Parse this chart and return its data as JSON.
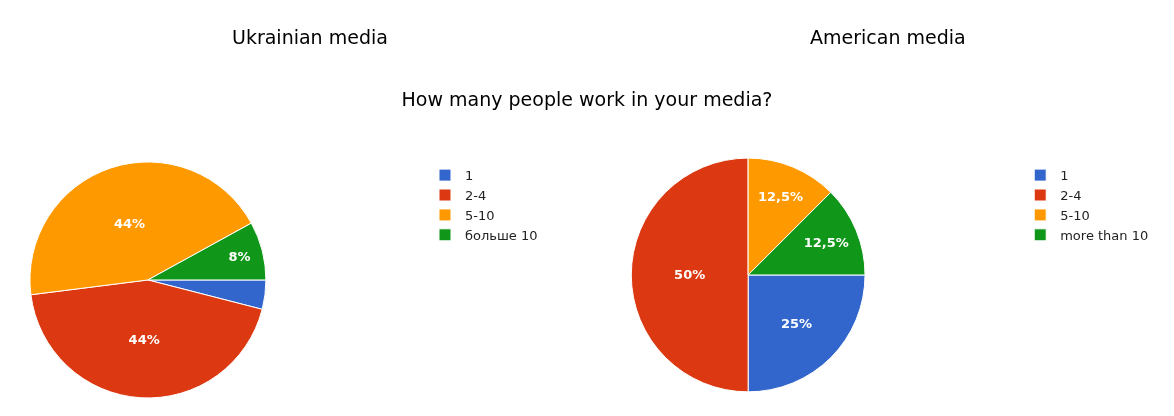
{
  "chart_data": [
    {
      "type": "pie",
      "title": "Ukrainian media",
      "subtitle": "How many people work in your media?",
      "categories": [
        "1",
        "2-4",
        "5-10",
        "больше 10"
      ],
      "values": [
        4,
        44,
        44,
        8
      ],
      "colors": [
        "#3366cc",
        "#dc3912",
        "#ff9900",
        "#109618"
      ],
      "value_labels": [
        null,
        "44%",
        "44%",
        "8%"
      ],
      "legend": "right"
    },
    {
      "type": "pie",
      "title": "American media",
      "categories": [
        "1",
        "2-4",
        "5-10",
        "more than 10"
      ],
      "values": [
        25,
        50,
        12.5,
        12.5
      ],
      "colors": [
        "#3366cc",
        "#dc3912",
        "#ff9900",
        "#109618"
      ],
      "value_labels": [
        "25%",
        "50%",
        "12,5%",
        "12,5%"
      ],
      "legend": "right"
    }
  ]
}
